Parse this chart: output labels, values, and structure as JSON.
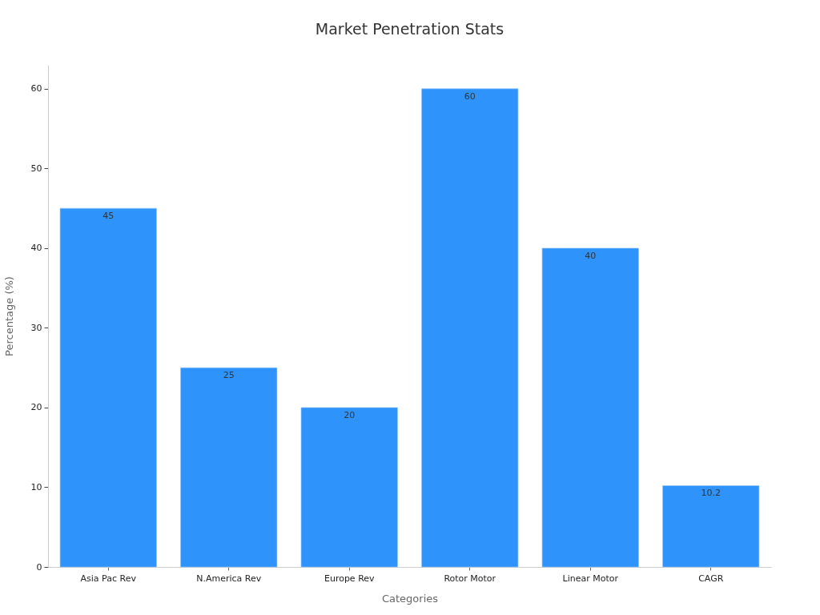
{
  "chart_data": {
    "type": "bar",
    "title": "Market Penetration Stats",
    "xlabel": "Categories",
    "ylabel": "Percentage (%)",
    "categories": [
      "Asia Pac Rev",
      "N.America Rev",
      "Europe Rev",
      "Rotor Motor",
      "Linear Motor",
      "CAGR"
    ],
    "values": [
      45,
      25,
      20,
      60,
      40,
      10.2
    ],
    "color": "#2e93fa",
    "ylim": [
      0,
      63
    ],
    "yticks": [
      0,
      10,
      20,
      30,
      40,
      50,
      60
    ],
    "data_labels": true
  }
}
